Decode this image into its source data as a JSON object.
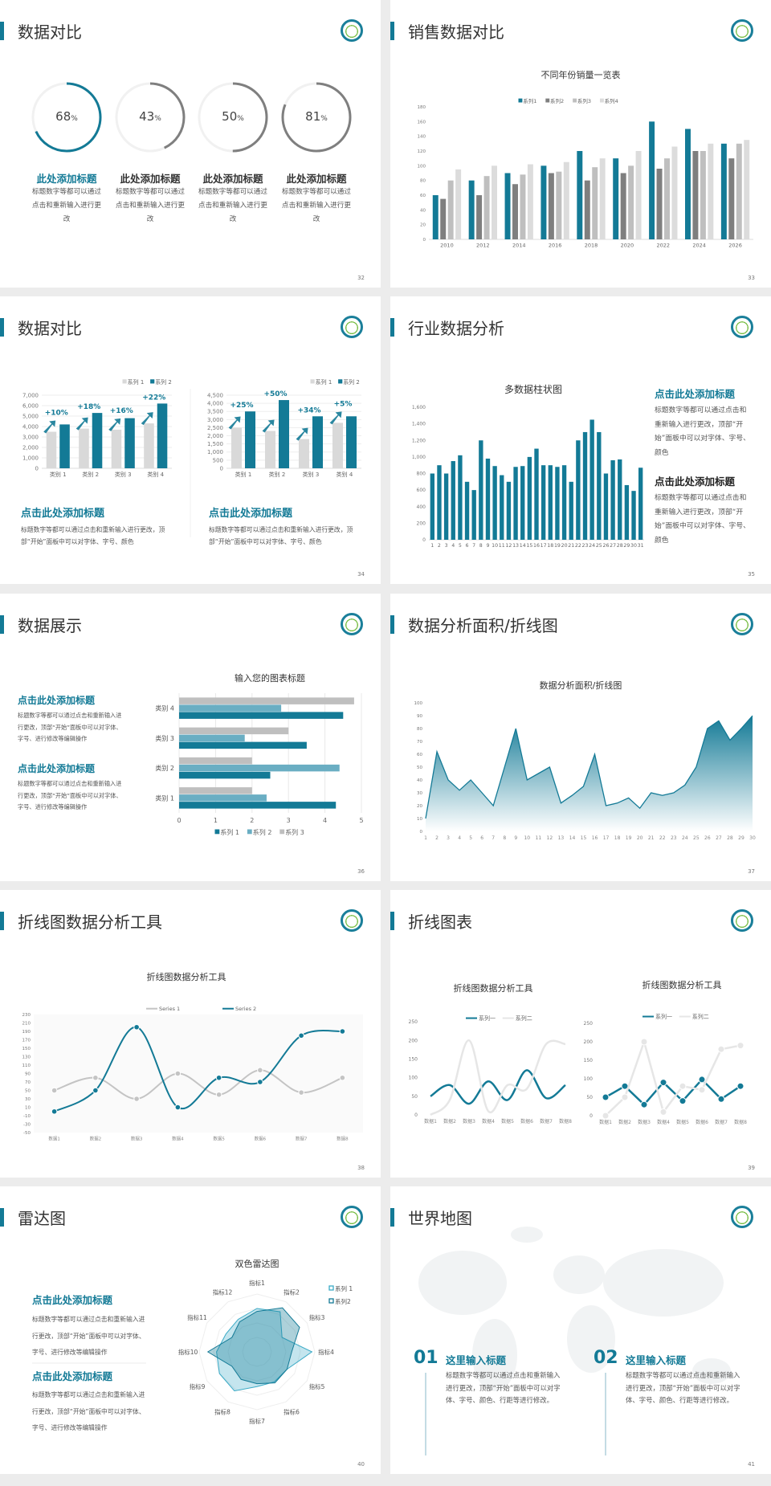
{
  "theme": {
    "accent": "#137a96",
    "gray": "#7f7f7f",
    "light": "#bfbfbf",
    "lighter": "#d9d9d9"
  },
  "slides": [
    {
      "page": "32",
      "title": "数据对比",
      "items": [
        {
          "value": 68,
          "label": "68",
          "unit": "%",
          "title": "此处添加标题",
          "desc": "标题数字等都可以通过点击和重新输入进行更改",
          "color": "#137a96"
        },
        {
          "value": 43,
          "label": "43",
          "unit": "%",
          "title": "此处添加标题",
          "desc": "标题数字等都可以通过点击和重新输入进行更改",
          "color": "#7f7f7f"
        },
        {
          "value": 50,
          "label": "50",
          "unit": "%",
          "title": "此处添加标题",
          "desc": "标题数字等都可以通过点击和重新输入进行更改",
          "color": "#7f7f7f"
        },
        {
          "value": 81,
          "label": "81",
          "unit": "%",
          "title": "此处添加标题",
          "desc": "标题数字等都可以通过点击和重新输入进行更改",
          "color": "#7f7f7f"
        }
      ]
    },
    {
      "page": "33",
      "title": "销售数据对比"
    },
    {
      "page": "34",
      "title": "数据对比",
      "blocks": [
        {
          "title": "点击此处添加标题",
          "desc": "标题数字等都可以通过点击和重新输入进行更改，顶部“开始”面板中可以对字体、字号、颜色"
        },
        {
          "title": "点击此处添加标题",
          "desc": "标题数字等都可以通过点击和重新输入进行更改，顶部“开始”面板中可以对字体、字号、颜色"
        }
      ]
    },
    {
      "page": "35",
      "title": "行业数据分析",
      "blocks": [
        {
          "title": "点击此处添加标题",
          "desc": "标题数字等都可以通过点击和重新输入进行更改，顶部“开始”面板中可以对字体、字号、颜色"
        },
        {
          "title": "点击此处添加标题",
          "desc": "标题数字等都可以通过点击和重新输入进行更改，顶部“开始”面板中可以对字体、字号、颜色"
        }
      ]
    },
    {
      "page": "36",
      "title": "数据展示",
      "blocks": [
        {
          "title": "点击此处添加标题",
          "desc": "标题数字等都可以通过点击和重新输入进行更改，顶部“开始”面板中可以对字体、字号、进行修改等编辑操作"
        },
        {
          "title": "点击此处添加标题",
          "desc": "标题数字等都可以通过点击和重新输入进行更改，顶部“开始”面板中可以对字体、字号、进行修改等编辑操作"
        }
      ]
    },
    {
      "page": "37",
      "title": "数据分析面积/折线图"
    },
    {
      "page": "38",
      "title": "折线图数据分析工具"
    },
    {
      "page": "39",
      "title": "折线图表"
    },
    {
      "page": "40",
      "title": "雷达图",
      "blocks": [
        {
          "title": "点击此处添加标题",
          "desc": "标题数字等都可以通过点击和重新输入进行更改，顶部“开始”面板中可以对字体、字号、进行修改等编辑操作"
        },
        {
          "title": "点击此处添加标题",
          "desc": "标题数字等都可以通过点击和重新输入进行更改，顶部“开始”面板中可以对字体、字号、进行修改等编辑操作"
        }
      ]
    },
    {
      "page": "41",
      "title": "世界地图",
      "blocks": [
        {
          "num": "01",
          "title": "这里输入标题",
          "desc": "标题数字等都可以通过点击和重新输入进行更改，顶部“开始”面板中可以对字体、字号、颜色、行距等进行修改。"
        },
        {
          "num": "02",
          "title": "这里输入标题",
          "desc": "标题数字等都可以通过点击和重新输入进行更改，顶部“开始”面板中可以对字体、字号、颜色、行距等进行修改。"
        }
      ]
    }
  ],
  "chart_data": [
    {
      "type": "bar",
      "title": "不同年份销量一览表",
      "categories": [
        "2010",
        "2012",
        "2014",
        "2016",
        "2018",
        "2020",
        "2022",
        "2024",
        "2026"
      ],
      "series": [
        {
          "name": "系列1",
          "color": "#137a96",
          "values": [
            60,
            80,
            90,
            100,
            120,
            110,
            160,
            150,
            130
          ]
        },
        {
          "name": "系列2",
          "color": "#7f7f7f",
          "values": [
            55,
            60,
            75,
            90,
            80,
            90,
            96,
            120,
            110
          ]
        },
        {
          "name": "系列3",
          "color": "#bfbfbf",
          "values": [
            80,
            86,
            88,
            92,
            98,
            100,
            110,
            120,
            130
          ]
        },
        {
          "name": "系列4",
          "color": "#dcdcdc",
          "values": [
            95,
            100,
            102,
            105,
            110,
            120,
            126,
            130,
            135
          ]
        }
      ],
      "ylim": [
        0,
        180
      ],
      "yticks": [
        "0",
        "20",
        "40",
        "60",
        "80",
        "100",
        "120",
        "140",
        "160",
        "180"
      ],
      "grid": false,
      "legend": "top"
    },
    {
      "type": "bar",
      "categories": [
        "类别 1",
        "类别 2",
        "类别 3",
        "类别 4"
      ],
      "series": [
        {
          "name": "系列 1",
          "color": "#d9d9d9",
          "values": [
            3500,
            3800,
            3700,
            4300
          ]
        },
        {
          "name": "系列 2",
          "color": "#137a96",
          "values": [
            4200,
            5300,
            4800,
            6200
          ]
        }
      ],
      "annotations": [
        "+10%",
        "+18%",
        "+16%",
        "+22%"
      ],
      "ylim": [
        0,
        7000
      ],
      "yticks": [
        "0",
        "1,000",
        "2,000",
        "3,000",
        "4,000",
        "5,000",
        "6,000",
        "7,000"
      ],
      "grid": true,
      "legend": "top-right"
    },
    {
      "type": "bar",
      "categories": [
        "类别 1",
        "类别 2",
        "类别 3",
        "类别 4"
      ],
      "series": [
        {
          "name": "系列 1",
          "color": "#d9d9d9",
          "values": [
            2500,
            2300,
            1800,
            2800
          ]
        },
        {
          "name": "系列 2",
          "color": "#137a96",
          "values": [
            3500,
            4200,
            3200,
            3200
          ]
        }
      ],
      "annotations": [
        "+25%",
        "+50%",
        "+34%",
        "+5%"
      ],
      "ylim": [
        0,
        4500
      ],
      "yticks": [
        "0",
        "500",
        "1,000",
        "1,500",
        "2,000",
        "2,500",
        "3,000",
        "3,500",
        "4,000",
        "4,500"
      ],
      "grid": true,
      "legend": "top-right"
    },
    {
      "type": "bar",
      "title": "多数据柱状图",
      "categories": [
        "1",
        "2",
        "3",
        "4",
        "5",
        "6",
        "7",
        "8",
        "9",
        "10",
        "11",
        "12",
        "13",
        "14",
        "15",
        "16",
        "17",
        "18",
        "19",
        "20",
        "21",
        "22",
        "23",
        "24",
        "25",
        "26",
        "27",
        "28",
        "29",
        "30",
        "31"
      ],
      "series": [
        {
          "color": "#137a96",
          "values": [
            800,
            900,
            800,
            950,
            1020,
            700,
            600,
            1200,
            980,
            890,
            780,
            700,
            880,
            890,
            1000,
            1100,
            900,
            900,
            880,
            900,
            700,
            1200,
            1300,
            1450,
            1300,
            800,
            960,
            970,
            660,
            590,
            870
          ]
        }
      ],
      "ylim": [
        0,
        1600
      ],
      "yticks": [
        "0",
        "200",
        "400",
        "600",
        "800",
        "1,000",
        "1,200",
        "1,400",
        "1,600"
      ],
      "grid": false
    },
    {
      "type": "bar",
      "orientation": "horizontal",
      "title": "输入您的图表标题",
      "categories": [
        "类别 1",
        "类别 2",
        "类别 3",
        "类别 4"
      ],
      "series": [
        {
          "name": "系列 1",
          "color": "#137a96",
          "values": [
            4.3,
            2.5,
            3.5,
            4.5
          ]
        },
        {
          "name": "系列 2",
          "color": "#6aaec3",
          "values": [
            2.4,
            4.4,
            1.8,
            2.8
          ]
        },
        {
          "name": "系列 3",
          "color": "#bfbfbf",
          "values": [
            2,
            2,
            3,
            4.8
          ]
        }
      ],
      "xlim": [
        0,
        5
      ],
      "xticks": [
        "0",
        "1",
        "2",
        "3",
        "4",
        "5"
      ],
      "grid": true,
      "legend": "bottom"
    },
    {
      "type": "area",
      "title": "数据分析面积/折线图",
      "categories": [
        "1",
        "2",
        "3",
        "4",
        "5",
        "6",
        "7",
        "8",
        "9",
        "10",
        "11",
        "12",
        "13",
        "14",
        "15",
        "16",
        "17",
        "18",
        "19",
        "20",
        "21",
        "22",
        "23",
        "24",
        "25",
        "26",
        "27",
        "28",
        "29",
        "30"
      ],
      "series": [
        {
          "color": "#137a96",
          "values": [
            10,
            62,
            40,
            32,
            40,
            30,
            20,
            50,
            80,
            40,
            45,
            50,
            22,
            28,
            35,
            60,
            20,
            22,
            26,
            18,
            30,
            28,
            30,
            36,
            50,
            80,
            86,
            71,
            80,
            90
          ]
        }
      ],
      "ylim": [
        0,
        100
      ],
      "yticks": [
        "0",
        "10",
        "20",
        "30",
        "40",
        "50",
        "60",
        "70",
        "80",
        "90",
        "100"
      ],
      "grid": false
    },
    {
      "type": "line",
      "title": "折线图数据分析工具",
      "categories": [
        "数据1",
        "数据2",
        "数据3",
        "数据4",
        "数据5",
        "数据6",
        "数据7",
        "数据8"
      ],
      "series": [
        {
          "name": "Series 1",
          "color": "#c4c4c4",
          "values": [
            50,
            80,
            30,
            90,
            40,
            98,
            45,
            80
          ]
        },
        {
          "name": "Series 2",
          "color": "#137a96",
          "values": [
            0,
            50,
            200,
            10,
            80,
            70,
            180,
            190
          ]
        }
      ],
      "ylim": [
        -50,
        230
      ],
      "yticks": [
        "-50",
        "-30",
        "-10",
        "10",
        "30",
        "50",
        "70",
        "90",
        "110",
        "130",
        "150",
        "170",
        "190",
        "210",
        "230"
      ],
      "smooth": true,
      "markers": true,
      "legend": "top"
    },
    {
      "type": "line",
      "title": "折线图数据分析工具",
      "categories": [
        "数据1",
        "数据2",
        "数据3",
        "数据4",
        "数据5",
        "数据6",
        "数据7",
        "数据8"
      ],
      "series": [
        {
          "name": "系列一",
          "color": "#137a96",
          "values": [
            50,
            80,
            30,
            90,
            40,
            120,
            45,
            80
          ]
        },
        {
          "name": "系列二",
          "color": "#e6e6e6",
          "values": [
            0,
            40,
            200,
            10,
            80,
            70,
            190,
            190
          ]
        }
      ],
      "ylim": [
        0,
        250
      ],
      "yticks": [
        "0",
        "50",
        "100",
        "150",
        "200",
        "250"
      ],
      "smooth": true,
      "markers": false,
      "legend": "top"
    },
    {
      "type": "line",
      "title": "折线图数据分析工具",
      "categories": [
        "数据1",
        "数据2",
        "数据3",
        "数据4",
        "数据5",
        "数据6",
        "数据7",
        "数据8"
      ],
      "series": [
        {
          "name": "系列一",
          "color": "#137a96",
          "values": [
            50,
            80,
            30,
            90,
            40,
            98,
            45,
            80
          ]
        },
        {
          "name": "系列二",
          "color": "#e6e6e6",
          "values": [
            0,
            50,
            200,
            10,
            80,
            70,
            180,
            190
          ]
        }
      ],
      "ylim": [
        0,
        250
      ],
      "yticks": [
        "0",
        "50",
        "100",
        "150",
        "200",
        "250"
      ],
      "smooth": false,
      "markers": true,
      "legend": "top"
    },
    {
      "type": "radar",
      "title": "双色雷达图",
      "categories": [
        "指标1",
        "指标2",
        "指标3",
        "指标4",
        "指标5",
        "指标6",
        "指标7",
        "指标8",
        "指标9",
        "指标10",
        "指标11",
        "指标12"
      ],
      "series": [
        {
          "name": "系列 1",
          "color": "#3aaac6",
          "values": [
            75,
            80,
            50,
            95,
            60,
            60,
            60,
            78,
            75,
            70,
            62,
            65
          ]
        },
        {
          "name": "系列2",
          "color": "#137a96",
          "values": [
            70,
            88,
            85,
            60,
            60,
            62,
            55,
            55,
            50,
            85,
            50,
            60
          ]
        }
      ],
      "ylim": [
        0,
        100
      ],
      "legend": "top-right"
    }
  ]
}
